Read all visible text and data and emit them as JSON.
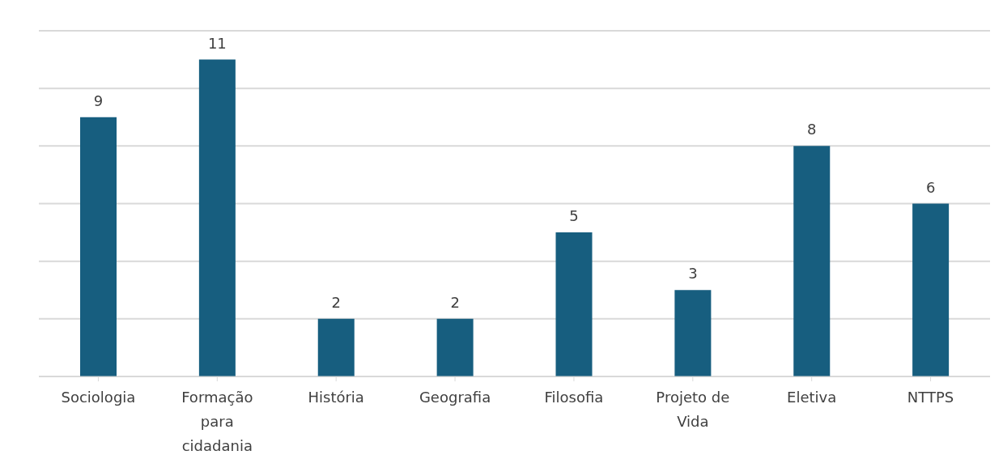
{
  "chart_data": {
    "type": "bar",
    "categories": [
      "Sociologia",
      "Formação para cidadania",
      "História",
      "Geografia",
      "Filosofia",
      "Projeto de Vida",
      "Eletiva",
      "NTTPS"
    ],
    "values": [
      9,
      11,
      2,
      2,
      5,
      3,
      8,
      6
    ],
    "color": "#175e7f",
    "ylim": [
      0,
      12
    ],
    "tick_labels": "x",
    "grid": "y",
    "data_labels": true
  }
}
